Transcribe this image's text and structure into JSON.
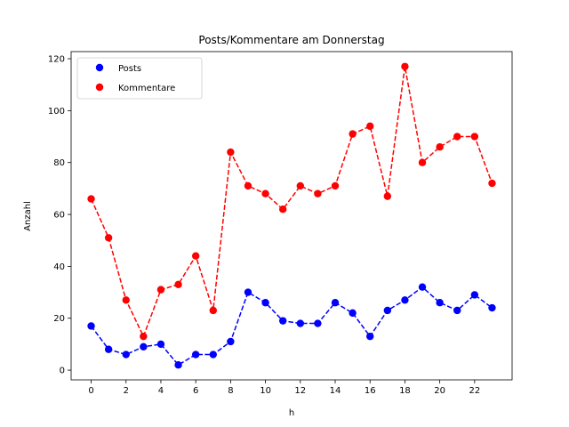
{
  "chart_data": {
    "type": "line",
    "title": "Posts/Kommentare am Donnerstag",
    "xlabel": "h",
    "ylabel": "Anzahl",
    "x": [
      0,
      1,
      2,
      3,
      4,
      5,
      6,
      7,
      8,
      9,
      10,
      11,
      12,
      13,
      14,
      15,
      16,
      17,
      18,
      19,
      20,
      21,
      22,
      23
    ],
    "xlim": [
      -1.15,
      24.15
    ],
    "ylim": [
      -3.75,
      122.75
    ],
    "xticks": [
      "0",
      "2",
      "4",
      "6",
      "8",
      "10",
      "12",
      "14",
      "16",
      "18",
      "20",
      "22"
    ],
    "yticks": [
      "0",
      "20",
      "40",
      "60",
      "80",
      "100",
      "120"
    ],
    "grid": false,
    "legend": "top-left",
    "line_style": "dashed",
    "marker": "circle",
    "series": [
      {
        "name": "Posts",
        "color": "#0000ff",
        "values": [
          17,
          8,
          6,
          9,
          10,
          2,
          6,
          6,
          11,
          30,
          26,
          19,
          18,
          18,
          26,
          22,
          13,
          23,
          27,
          32,
          26,
          23,
          29,
          24
        ]
      },
      {
        "name": "Kommentare",
        "color": "#ff0000",
        "values": [
          66,
          51,
          27,
          13,
          31,
          33,
          44,
          23,
          84,
          71,
          68,
          62,
          71,
          68,
          71,
          91,
          94,
          67,
          117,
          80,
          86,
          90,
          90,
          72
        ]
      }
    ]
  }
}
